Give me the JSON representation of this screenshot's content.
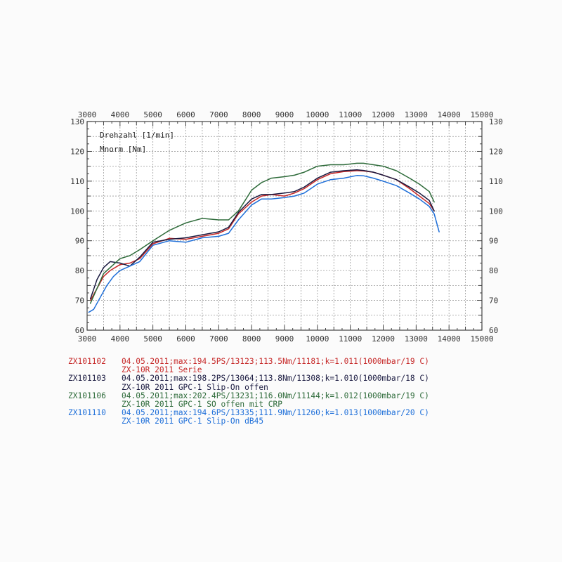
{
  "chart_data": {
    "type": "line",
    "title": "",
    "xlabel": "Drehzahl [1/min]",
    "ylabel": "Mnorm [Nm]",
    "xlim": [
      3000,
      15000
    ],
    "ylim": [
      60,
      130
    ],
    "x_ticks": [
      "3000",
      "4000",
      "5000",
      "6000",
      "7000",
      "8000",
      "9000",
      "10000",
      "11000",
      "12000",
      "13000",
      "14000",
      "15000"
    ],
    "y_ticks": [
      "130",
      "120",
      "110",
      "100",
      "90",
      "80",
      "70",
      "60"
    ],
    "y_ticks_left": [
      "130",
      "120",
      "110",
      "100",
      "90",
      "80",
      "70",
      "60"
    ],
    "grid": true,
    "series": [
      {
        "name": "ZX101102",
        "color": "#c62828",
        "x": [
          3100,
          3300,
          3500,
          3700,
          4000,
          4300,
          4600,
          5000,
          5500,
          6000,
          6500,
          7000,
          7300,
          7600,
          8000,
          8300,
          8600,
          9000,
          9300,
          9600,
          10000,
          10400,
          10800,
          11200,
          11400,
          11700,
          12000,
          12400,
          12800,
          13100,
          13400,
          13550
        ],
        "y": [
          70,
          74,
          78,
          80,
          82,
          82.5,
          84,
          89,
          90.8,
          90.5,
          91.5,
          92.5,
          94,
          99,
          103,
          105,
          105.5,
          105,
          106,
          107.5,
          110.5,
          112.5,
          113.2,
          113.5,
          113.4,
          113,
          112,
          110.5,
          107.5,
          105,
          102.5,
          100
        ]
      },
      {
        "name": "ZX101103",
        "color": "#1a1a40",
        "x": [
          3100,
          3300,
          3500,
          3700,
          4000,
          4300,
          4600,
          5000,
          5500,
          6000,
          6500,
          7000,
          7300,
          7600,
          8000,
          8300,
          8600,
          9000,
          9300,
          9600,
          10000,
          10400,
          10800,
          11200,
          11400,
          11700,
          12000,
          12400,
          12800,
          13100,
          13400,
          13550
        ],
        "y": [
          70.5,
          77,
          81,
          83,
          82.5,
          81.5,
          84.5,
          89.5,
          90.5,
          91,
          92,
          93,
          94.5,
          99.5,
          104,
          105.5,
          105.5,
          106,
          106.5,
          108,
          111,
          113,
          113.5,
          113.8,
          113.6,
          113,
          112,
          110.5,
          108,
          106,
          103.5,
          100
        ]
      },
      {
        "name": "ZX101106",
        "color": "#2e6b3a",
        "x": [
          3100,
          3300,
          3500,
          3700,
          4000,
          4300,
          4600,
          5000,
          5500,
          6000,
          6500,
          7000,
          7300,
          7600,
          8000,
          8300,
          8600,
          9000,
          9300,
          9600,
          10000,
          10400,
          10800,
          11200,
          11400,
          11700,
          12000,
          12400,
          12800,
          13100,
          13400,
          13550
        ],
        "y": [
          69,
          74,
          79,
          81,
          84,
          85,
          87,
          90,
          93.5,
          96,
          97.5,
          97,
          97,
          100,
          107,
          109.5,
          111,
          111.5,
          112,
          113,
          115,
          115.5,
          115.5,
          116,
          116,
          115.5,
          115,
          113.5,
          111,
          109,
          106.5,
          103
        ]
      },
      {
        "name": "ZX101110",
        "color": "#1e6fd9",
        "x": [
          3050,
          3200,
          3400,
          3600,
          3800,
          4000,
          4300,
          4600,
          5000,
          5500,
          6000,
          6500,
          7000,
          7300,
          7600,
          8000,
          8300,
          8600,
          9000,
          9300,
          9600,
          10000,
          10400,
          10800,
          11200,
          11400,
          11700,
          12000,
          12400,
          12800,
          13100,
          13400,
          13550,
          13700
        ],
        "y": [
          66,
          67,
          71,
          75,
          78,
          80,
          81.5,
          83,
          88.5,
          90,
          89.5,
          91,
          91.5,
          92.5,
          97,
          102,
          104,
          104,
          104.5,
          105,
          106,
          109,
          110.5,
          111,
          111.9,
          111.8,
          111,
          110,
          108.5,
          106,
          104,
          101.5,
          99,
          93
        ]
      }
    ]
  },
  "inner_labels": {
    "speed": "Drehzahl [1/min]",
    "torque": "Mnorm [Nm]"
  },
  "legend": [
    {
      "id": "ZX101102",
      "color": "#c62828",
      "line1": "04.05.2011;max:194.5PS/13123;113.5Nm/11181;k=1.011(1000mbar/19 C)",
      "line2": "ZX-10R 2011 Serie"
    },
    {
      "id": "ZX101103",
      "color": "#1a1a40",
      "line1": "04.05.2011;max:198.2PS/13064;113.8Nm/11308;k=1.010(1000mbar/18 C)",
      "line2": "ZX-10R 2011 GPC-1 Slip-On offen"
    },
    {
      "id": "ZX101106",
      "color": "#2e6b3a",
      "line1": "04.05.2011;max:202.4PS/13231;116.0Nm/11144;k=1.012(1000mbar/19 C)",
      "line2": "ZX-10R 2011 GPC-1 SO offen mit CRP"
    },
    {
      "id": "ZX101110",
      "color": "#1e6fd9",
      "line1": "04.05.2011;max:194.6PS/13335;111.9Nm/11260;k=1.013(1000mbar/20 C)",
      "line2": "ZX-10R 2011 GPC-1 Slip-On dB45"
    }
  ]
}
